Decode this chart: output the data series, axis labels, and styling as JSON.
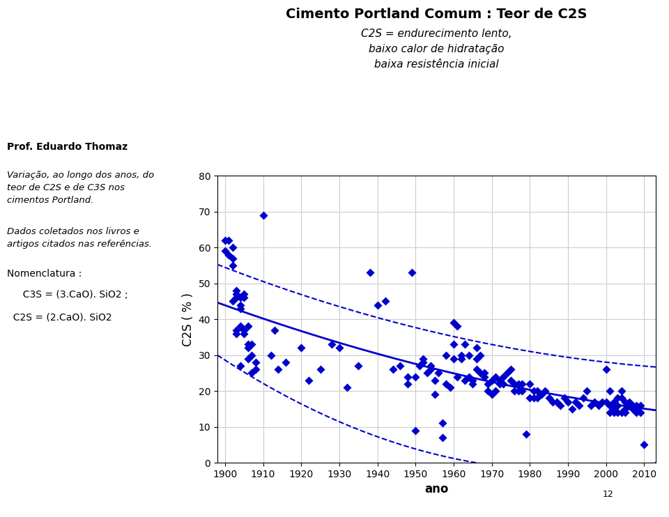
{
  "title": "Cimento Portland Comum : Teor de C2S",
  "subtitle_line1": "C2S = endurecimento lento,",
  "subtitle_line2": "baixo calor de hidratação",
  "subtitle_line3": "baixa resistência inicial",
  "ylabel": "C2S ( % )",
  "xlabel": "ano",
  "xlim": [
    1898,
    2013
  ],
  "ylim": [
    0,
    80
  ],
  "xticks": [
    1900,
    1910,
    1920,
    1930,
    1940,
    1950,
    1960,
    1970,
    1980,
    1990,
    2000,
    2010
  ],
  "yticks": [
    0,
    10,
    20,
    30,
    40,
    50,
    60,
    70,
    80
  ],
  "scatter_color": "#0000CC",
  "line_color": "#0000CC",
  "left_text_bold": "Prof. Eduardo Thomaz",
  "left_text_italic1": "Variação, ao longo dos anos, do\nteor de C2S e de C3S nos\ncimentos Portland.",
  "left_text_italic2": "Dados coletados nos livros e\nartigos citados nas referências.",
  "left_text_normal": "Nomenclatura :",
  "left_text_eq1": "  C3S = (3.CaO). SiO2 ;",
  "left_text_eq2": "  C2S = (2.CaO). SiO2",
  "footnote": "12",
  "scatter_x": [
    1900,
    1900,
    1901,
    1901,
    1902,
    1902,
    1902,
    1902,
    1903,
    1903,
    1903,
    1903,
    1903,
    1904,
    1904,
    1904,
    1904,
    1904,
    1905,
    1905,
    1905,
    1905,
    1906,
    1906,
    1906,
    1906,
    1907,
    1907,
    1907,
    1908,
    1908,
    1910,
    1912,
    1913,
    1914,
    1916,
    1920,
    1922,
    1925,
    1928,
    1930,
    1932,
    1935,
    1938,
    1940,
    1942,
    1944,
    1946,
    1948,
    1948,
    1949,
    1950,
    1950,
    1951,
    1952,
    1952,
    1953,
    1954,
    1954,
    1955,
    1955,
    1956,
    1957,
    1957,
    1958,
    1958,
    1959,
    1960,
    1960,
    1960,
    1961,
    1961,
    1962,
    1962,
    1963,
    1963,
    1964,
    1964,
    1965,
    1965,
    1966,
    1966,
    1966,
    1967,
    1967,
    1968,
    1968,
    1969,
    1969,
    1970,
    1970,
    1971,
    1971,
    1972,
    1972,
    1973,
    1973,
    1974,
    1975,
    1975,
    1976,
    1976,
    1977,
    1977,
    1978,
    1978,
    1979,
    1980,
    1980,
    1981,
    1981,
    1982,
    1982,
    1983,
    1984,
    1985,
    1986,
    1987,
    1988,
    1989,
    1990,
    1991,
    1992,
    1993,
    1994,
    1995,
    1996,
    1997,
    1998,
    1999,
    2000,
    2000,
    2001,
    2001,
    2001,
    2002,
    2002,
    2002,
    2003,
    2003,
    2003,
    2004,
    2004,
    2004,
    2005,
    2005,
    2005,
    2006,
    2006,
    2007,
    2007,
    2008,
    2008,
    2008,
    2009,
    2009,
    2010
  ],
  "scatter_y": [
    62,
    59,
    58,
    62,
    55,
    57,
    60,
    45,
    37,
    47,
    46,
    48,
    36,
    43,
    44,
    46,
    38,
    27,
    46,
    47,
    36,
    37,
    32,
    33,
    29,
    38,
    30,
    33,
    25,
    28,
    26,
    69,
    30,
    37,
    26,
    28,
    32,
    23,
    26,
    33,
    32,
    21,
    27,
    53,
    44,
    45,
    26,
    27,
    22,
    24,
    53,
    9,
    24,
    27,
    28,
    29,
    25,
    26,
    27,
    19,
    23,
    25,
    7,
    11,
    22,
    30,
    21,
    39,
    33,
    29,
    38,
    24,
    30,
    29,
    33,
    23,
    30,
    24,
    23,
    22,
    32,
    29,
    26,
    30,
    25,
    25,
    24,
    20,
    22,
    19,
    23,
    20,
    24,
    22,
    23,
    24,
    22,
    25,
    26,
    23,
    22,
    20,
    20,
    22,
    22,
    20,
    8,
    22,
    18,
    20,
    18,
    20,
    18,
    19,
    20,
    18,
    17,
    17,
    16,
    18,
    17,
    15,
    17,
    16,
    18,
    20,
    16,
    17,
    16,
    17,
    26,
    17,
    20,
    16,
    14,
    17,
    15,
    14,
    18,
    16,
    14,
    20,
    18,
    14,
    17,
    15,
    14,
    17,
    16,
    16,
    15,
    16,
    15,
    14,
    16,
    14,
    5
  ],
  "upper_env_x": [
    1900,
    1910,
    1920,
    1930,
    1940,
    1950,
    1960,
    1970,
    1980,
    1990,
    2000,
    2010
  ],
  "upper_env_y": [
    55,
    50,
    47,
    43,
    40,
    38,
    36,
    33,
    31,
    29,
    28,
    27
  ],
  "lower_env_x": [
    1900,
    1910,
    1920,
    1930,
    1940,
    1950,
    1960,
    1970,
    1980,
    1990,
    2000,
    2010
  ],
  "lower_env_y": [
    29,
    22,
    16,
    11,
    7,
    4,
    2,
    0,
    -2,
    -3,
    -2,
    0
  ]
}
